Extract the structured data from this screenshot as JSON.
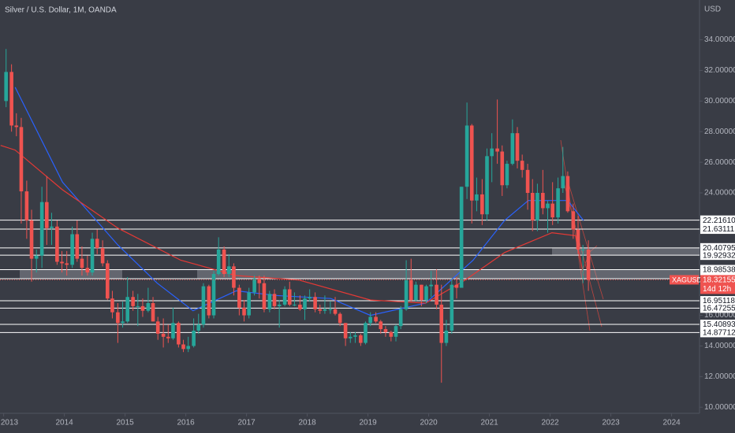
{
  "chart_data": {
    "type": "candlestick",
    "title": "Silver / U.S. Dollar, 1M, OANDA",
    "y_unit": "USD",
    "up_color": "#26a69a",
    "down_color": "#ef5350",
    "xlim": [
      2012.94,
      2024.46
    ],
    "xticks": [
      2013,
      2014,
      2015,
      2016,
      2017,
      2018,
      2019,
      2020,
      2021,
      2022,
      2023,
      2024
    ],
    "ylim": [
      9.6,
      36.6
    ],
    "yticks": [
      {
        "value": 10,
        "label": "10.00000"
      },
      {
        "value": 12,
        "label": "12.00000"
      },
      {
        "value": 14,
        "label": "14.00000"
      },
      {
        "value": 16,
        "label": "16.00000"
      },
      {
        "value": 18,
        "label": "18.00000"
      },
      {
        "value": 20,
        "label": "20.00000"
      },
      {
        "value": 22,
        "label": "22.00000"
      },
      {
        "value": 24,
        "label": "24.00000"
      },
      {
        "value": 26,
        "label": "26.00000"
      },
      {
        "value": 28,
        "label": "28.00000"
      },
      {
        "value": 30,
        "label": "30.00000"
      },
      {
        "value": 32,
        "label": "32.00000"
      },
      {
        "value": 34,
        "label": "34.00000"
      }
    ],
    "candles": {
      "x": [
        2013.04,
        2013.13,
        2013.21,
        2013.29,
        2013.38,
        2013.46,
        2013.54,
        2013.63,
        2013.71,
        2013.79,
        2013.88,
        2013.96,
        2014.04,
        2014.13,
        2014.21,
        2014.29,
        2014.38,
        2014.46,
        2014.54,
        2014.63,
        2014.71,
        2014.79,
        2014.88,
        2014.96,
        2015.04,
        2015.13,
        2015.21,
        2015.29,
        2015.38,
        2015.46,
        2015.54,
        2015.63,
        2015.71,
        2015.79,
        2015.88,
        2015.96,
        2016.04,
        2016.13,
        2016.21,
        2016.29,
        2016.38,
        2016.46,
        2016.54,
        2016.63,
        2016.71,
        2016.79,
        2016.88,
        2016.96,
        2017.04,
        2017.13,
        2017.21,
        2017.29,
        2017.38,
        2017.46,
        2017.54,
        2017.63,
        2017.71,
        2017.79,
        2017.88,
        2017.96,
        2018.04,
        2018.13,
        2018.21,
        2018.29,
        2018.38,
        2018.46,
        2018.54,
        2018.63,
        2018.71,
        2018.79,
        2018.88,
        2018.96,
        2019.04,
        2019.13,
        2019.21,
        2019.29,
        2019.38,
        2019.46,
        2019.54,
        2019.63,
        2019.71,
        2019.79,
        2019.88,
        2019.96,
        2020.04,
        2020.13,
        2020.21,
        2020.29,
        2020.38,
        2020.46,
        2020.54,
        2020.63,
        2020.71,
        2020.79,
        2020.88,
        2020.96,
        2021.04,
        2021.13,
        2021.21,
        2021.29,
        2021.38,
        2021.46,
        2021.54,
        2021.63,
        2021.71,
        2021.79,
        2021.88,
        2021.96,
        2022.04,
        2022.13,
        2022.21,
        2022.29,
        2022.38,
        2022.46,
        2022.54,
        2022.63
      ],
      "open": [
        30.0,
        31.9,
        28.4,
        28.3,
        24.1,
        22.2,
        19.7,
        19.9,
        23.4,
        21.7,
        21.8,
        19.5,
        19.4,
        19.3,
        21.3,
        19.7,
        19.1,
        18.8,
        21.0,
        20.4,
        19.4,
        17.1,
        16.2,
        15.5,
        15.6,
        17.2,
        16.6,
        16.6,
        16.3,
        16.8,
        15.6,
        14.8,
        14.6,
        14.5,
        15.5,
        14.1,
        13.8,
        14.0,
        15.0,
        15.4,
        17.9,
        16.0,
        18.7,
        20.3,
        18.7,
        19.2,
        17.8,
        16.5,
        16.0,
        17.5,
        18.4,
        18.1,
        16.4,
        17.4,
        16.6,
        16.7,
        17.7,
        16.7,
        16.7,
        16.4,
        17.1,
        17.2,
        16.4,
        16.3,
        16.4,
        16.4,
        16.1,
        15.5,
        14.5,
        14.6,
        14.7,
        14.2,
        15.5,
        15.9,
        15.6,
        15.1,
        14.9,
        14.6,
        15.3,
        16.4,
        18.3,
        17.0,
        18.0,
        17.0,
        17.9,
        18.0,
        16.7,
        14.2,
        15.0,
        18.0,
        17.8,
        24.4,
        28.4,
        23.5,
        23.9,
        22.6,
        26.4,
        26.9,
        26.7,
        24.5,
        25.9,
        27.9,
        26.1,
        25.5,
        24.0,
        22.2,
        24.0,
        23.0,
        23.3,
        22.4,
        24.3,
        25.1,
        22.8,
        21.6,
        20.3,
        20.3
      ],
      "high": [
        33.4,
        32.4,
        29.2,
        28.9,
        24.8,
        22.9,
        20.3,
        24.4,
        25.1,
        22.7,
        22.2,
        20.2,
        20.2,
        21.8,
        22.2,
        20.5,
        19.9,
        21.4,
        21.6,
        20.9,
        19.6,
        17.6,
        16.8,
        16.9,
        18.5,
        17.6,
        17.4,
        17.1,
        17.8,
        17.2,
        15.9,
        15.8,
        15.4,
        16.5,
        15.6,
        14.4,
        14.6,
        15.8,
        16.1,
        18.1,
        18.0,
        18.9,
        21.1,
        20.5,
        20.0,
        19.4,
        18.0,
        17.0,
        17.8,
        18.6,
        18.6,
        18.6,
        17.6,
        17.7,
        17.0,
        17.9,
        18.2,
        17.5,
        17.3,
        17.3,
        17.7,
        17.5,
        16.7,
        17.3,
        16.9,
        17.2,
        16.2,
        15.5,
        14.9,
        14.9,
        14.8,
        15.6,
        16.2,
        16.2,
        15.7,
        15.3,
        15.0,
        15.4,
        16.6,
        19.6,
        19.7,
        18.2,
        18.0,
        18.0,
        18.9,
        19.0,
        18.0,
        15.7,
        18.4,
        18.5,
        24.4,
        29.9,
        28.5,
        25.0,
        24.9,
        26.9,
        27.9,
        30.1,
        27.1,
        26.1,
        28.8,
        28.3,
        26.5,
        25.9,
        24.9,
        24.6,
        25.5,
        23.5,
        24.7,
        25.0,
        27.0,
        25.4,
        23.3,
        22.5,
        20.6,
        20.9
      ],
      "low": [
        29.6,
        28.0,
        27.7,
        22.0,
        21.0,
        18.2,
        18.8,
        19.1,
        20.6,
        20.6,
        19.3,
        18.8,
        18.6,
        19.1,
        19.5,
        18.6,
        18.6,
        18.6,
        20.0,
        19.2,
        17.0,
        15.8,
        14.2,
        15.2,
        15.5,
        16.3,
        15.3,
        15.9,
        16.2,
        15.6,
        14.4,
        13.9,
        14.2,
        14.4,
        13.9,
        13.6,
        13.6,
        13.9,
        14.8,
        15.2,
        15.8,
        15.8,
        18.6,
        18.5,
        18.5,
        17.3,
        16.0,
        15.6,
        15.8,
        17.3,
        17.1,
        16.2,
        16.2,
        16.4,
        15.2,
        16.6,
        16.6,
        16.6,
        16.3,
        15.7,
        16.9,
        16.2,
        16.1,
        16.1,
        16.1,
        16.0,
        15.3,
        14.0,
        14.2,
        14.2,
        14.0,
        14.1,
        15.3,
        15.5,
        14.8,
        14.6,
        14.3,
        14.3,
        15.1,
        16.3,
        16.9,
        16.9,
        16.6,
        16.8,
        17.2,
        16.4,
        11.6,
        14.0,
        14.8,
        17.1,
        17.8,
        23.6,
        22.0,
        22.8,
        21.9,
        22.2,
        24.7,
        25.9,
        23.8,
        24.3,
        25.8,
        25.6,
        25.0,
        22.9,
        21.5,
        21.5,
        22.6,
        21.4,
        21.9,
        22.0,
        24.0,
        22.7,
        21.0,
        20.0,
        18.1,
        17.6
      ],
      "close": [
        31.9,
        28.4,
        28.3,
        24.1,
        22.2,
        19.7,
        19.9,
        23.4,
        21.7,
        21.8,
        19.5,
        19.4,
        19.3,
        21.3,
        19.7,
        19.1,
        18.8,
        21.0,
        20.4,
        19.4,
        17.1,
        16.2,
        15.5,
        15.6,
        17.2,
        16.6,
        16.6,
        16.3,
        16.8,
        15.6,
        14.8,
        14.6,
        14.5,
        15.5,
        14.1,
        13.8,
        14.0,
        15.0,
        15.4,
        17.9,
        16.0,
        18.7,
        20.3,
        18.7,
        19.2,
        17.8,
        16.5,
        16.0,
        17.5,
        18.4,
        18.1,
        16.4,
        17.4,
        16.6,
        16.7,
        17.7,
        16.7,
        16.7,
        16.4,
        17.1,
        17.2,
        16.4,
        16.3,
        16.4,
        16.4,
        16.1,
        15.5,
        14.5,
        14.6,
        14.7,
        14.2,
        15.5,
        15.9,
        15.6,
        15.1,
        14.9,
        14.6,
        15.3,
        16.4,
        18.3,
        17.0,
        18.0,
        17.0,
        17.9,
        18.0,
        16.7,
        14.2,
        15.0,
        18.0,
        17.8,
        24.4,
        28.4,
        23.5,
        23.9,
        22.6,
        26.4,
        26.9,
        26.7,
        24.5,
        25.9,
        27.9,
        26.1,
        25.5,
        24.0,
        22.2,
        24.0,
        23.0,
        23.3,
        22.4,
        24.3,
        25.1,
        22.8,
        21.6,
        20.3,
        20.3,
        18.32155
      ]
    },
    "moving_averages": [
      {
        "color": "#2962ff",
        "x": [
          2013.19,
          2013.97,
          2014.88,
          2015.53,
          2016.12,
          2016.83,
          2017.48,
          2018.39,
          2019.04,
          2019.95,
          2020.73,
          2021.25,
          2021.64,
          2022.29,
          2022.55
        ],
        "values": [
          30.9,
          24.7,
          20.6,
          18.1,
          16.3,
          17.6,
          17.3,
          17.1,
          16.0,
          16.8,
          19.6,
          22.2,
          23.5,
          23.5,
          22.2
        ]
      },
      {
        "color": "#e53935",
        "x": [
          2012.95,
          2013.19,
          2013.97,
          2014.88,
          2015.92,
          2016.83,
          2017.87,
          2019.04,
          2019.95,
          2020.6,
          2021.25,
          2022.03,
          2022.42,
          2022.55
        ],
        "values": [
          27.1,
          26.8,
          24.2,
          21.7,
          19.6,
          18.6,
          18.3,
          17.0,
          16.8,
          18.3,
          20.1,
          21.4,
          21.2,
          18.6
        ]
      }
    ],
    "levels": [
      {
        "value": 22.2161,
        "label": "22.21610"
      },
      21.63111,
      20.40795,
      19.92932,
      18.98538,
      18.39181,
      16.95118,
      16.47255,
      15.40893,
      14.87712
    ],
    "current_price": {
      "symbol": "XAGUSD",
      "value": 18.32155,
      "countdown": "14d 12h"
    }
  }
}
